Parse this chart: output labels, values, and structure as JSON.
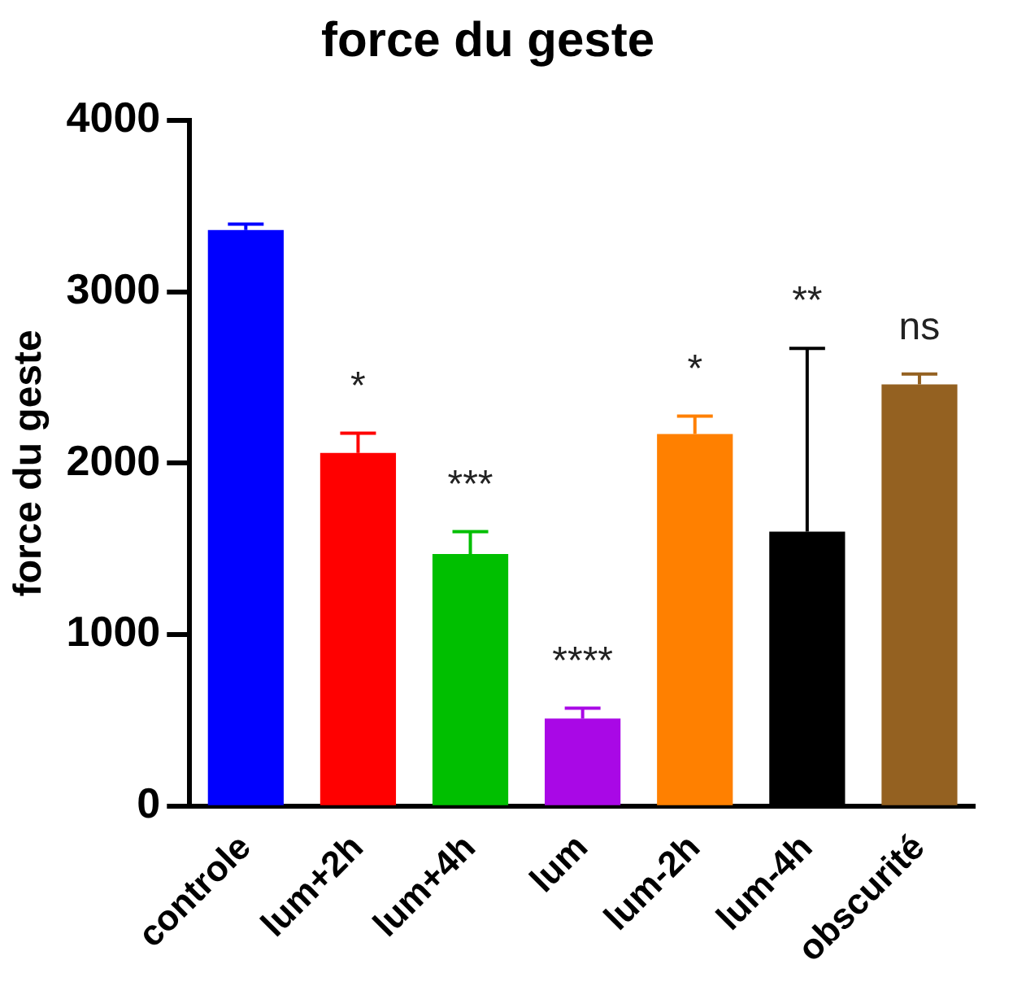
{
  "chart_data": {
    "type": "bar",
    "title": "force du geste",
    "ylabel": "force du geste",
    "categories": [
      "controle",
      "lum+2h",
      "lum+4h",
      "lum",
      "lum-2h",
      "lum-4h",
      "obscurité"
    ],
    "values": [
      3360,
      2060,
      1470,
      510,
      2170,
      1600,
      2460
    ],
    "colors": [
      "#0000ff",
      "#ff0000",
      "#00bf00",
      "#a908e6",
      "#ff8000",
      "#000000",
      "#946121"
    ],
    "errors": [
      [
        3360,
        3395
      ],
      [
        2060,
        2175
      ],
      [
        1470,
        1600
      ],
      [
        510,
        570
      ],
      [
        2170,
        2275
      ],
      [
        1600,
        2670
      ],
      [
        2460,
        2520
      ]
    ],
    "ylim": [
      0,
      4000
    ],
    "yticks": [
      0,
      1000,
      2000,
      3000,
      4000
    ],
    "grid": false,
    "legend": false,
    "annotations": [
      "*",
      "***",
      "****",
      "*",
      "**",
      "ns"
    ]
  }
}
